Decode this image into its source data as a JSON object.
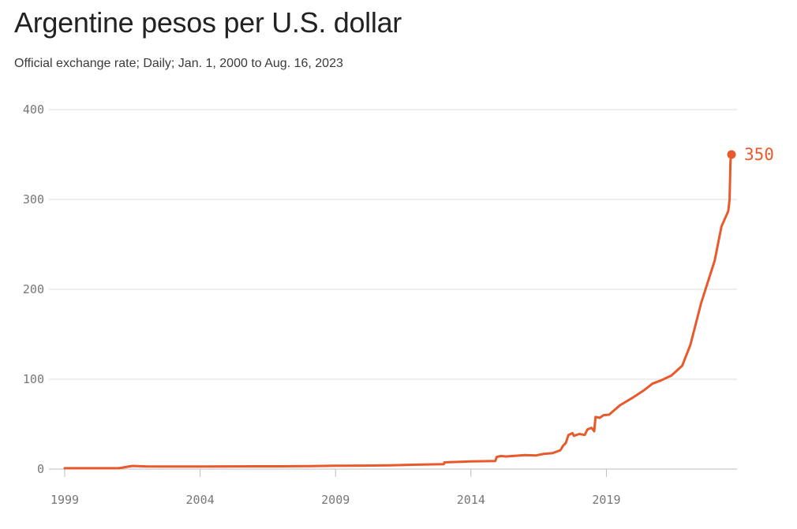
{
  "title": "Argentine pesos per U.S. dollar",
  "subtitle": "Official exchange rate; Daily; Jan. 1, 2000 to Aug. 16, 2023",
  "accent_color": "#e8592c",
  "chart_data": {
    "type": "line",
    "title": "Argentine pesos per U.S. dollar",
    "xlabel": "",
    "ylabel": "",
    "xlim": [
      1999,
      2023.62
    ],
    "ylim": [
      0,
      400
    ],
    "xticks": [
      1999,
      2004,
      2009,
      2014,
      2019
    ],
    "xtick_labels": [
      "1999",
      "2004",
      "2009",
      "2014",
      "2019"
    ],
    "yticks": [
      0,
      100,
      200,
      300,
      400
    ],
    "ytick_labels": [
      "0",
      "100",
      "200",
      "300",
      "400"
    ],
    "grid": true,
    "end_label": "350",
    "series": [
      {
        "name": "Official exchange rate",
        "x": [
          1999.0,
          2001.0,
          2001.5,
          2002.0,
          2003.0,
          2004.0,
          2005.0,
          2006.0,
          2007.0,
          2008.0,
          2009.0,
          2010.0,
          2011.0,
          2012.0,
          2013.0,
          2013.02,
          2014.0,
          2014.9,
          2014.95,
          2015.1,
          2015.3,
          2016.0,
          2016.4,
          2016.7,
          2017.0,
          2017.3,
          2017.4,
          2017.5,
          2017.6,
          2017.75,
          2017.8,
          2018.0,
          2018.2,
          2018.3,
          2018.45,
          2018.55,
          2018.6,
          2018.75,
          2018.9,
          2019.1,
          2019.5,
          2020.0,
          2020.4,
          2020.7,
          2021.0,
          2021.4,
          2021.8,
          2022.1,
          2022.5,
          2023.0,
          2023.25,
          2023.5,
          2023.55,
          2023.58,
          2023.6,
          2023.62
        ],
        "y": [
          1.0,
          1.0,
          3.5,
          3.0,
          2.9,
          2.9,
          3.0,
          3.1,
          3.1,
          3.3,
          3.8,
          3.9,
          4.2,
          4.9,
          5.5,
          7.5,
          8.5,
          9.0,
          13.5,
          14.5,
          14.0,
          15.5,
          15.2,
          17.0,
          17.6,
          21.0,
          26.0,
          29.0,
          38.0,
          40.0,
          37.0,
          39.0,
          38.0,
          44.0,
          46.0,
          42.0,
          58.0,
          57.0,
          60.0,
          60.5,
          71.0,
          80.0,
          88.0,
          95.0,
          98.5,
          104.0,
          115.0,
          138.0,
          185.0,
          232.0,
          270.0,
          287.0,
          300.0,
          340.0,
          350.0,
          350.0
        ]
      }
    ]
  }
}
